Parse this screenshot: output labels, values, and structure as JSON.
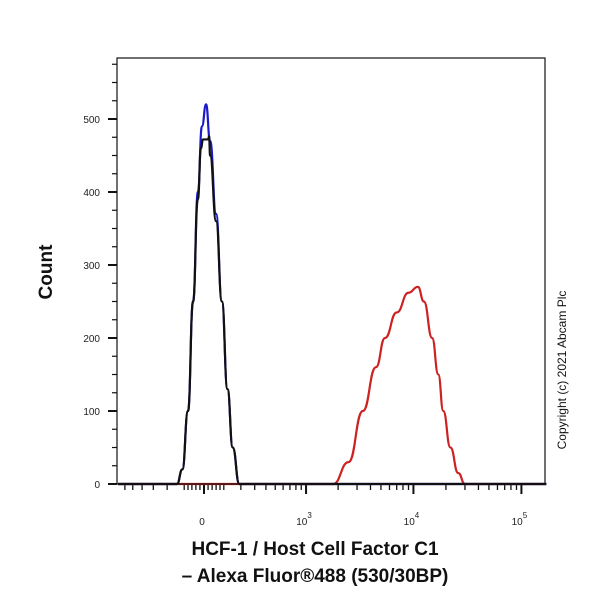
{
  "chart_data": {
    "type": "line",
    "title": "",
    "xlabel_lines": [
      "HCF-1 / Host Cell Factor C1",
      "– Alexa Fluor®488 (530/30BP)"
    ],
    "ylabel": "Count",
    "x_scale": "biexponential",
    "xlim": [
      -700,
      170000
    ],
    "ylim": [
      0,
      584
    ],
    "x_ticks": [
      {
        "value": 0,
        "label": "0"
      },
      {
        "value": 1000,
        "label": "10",
        "exp": "3"
      },
      {
        "value": 10000,
        "label": "10",
        "exp": "4"
      },
      {
        "value": 100000,
        "label": "10",
        "exp": "5"
      }
    ],
    "y_ticks": [
      0,
      100,
      200,
      300,
      400,
      500
    ],
    "grid": false,
    "series": [
      {
        "color": "#cc2222",
        "x": [
          -700,
          1800,
          2500,
          3400,
          4500,
          5450,
          7000,
          9000,
          11000,
          12500,
          14900,
          17000,
          18900,
          22000,
          26000,
          30000,
          170000
        ],
        "y": [
          0,
          0,
          30,
          100,
          160,
          200,
          235,
          262,
          270,
          250,
          200,
          150,
          100,
          50,
          15,
          0,
          0
        ]
      },
      {
        "color": "#1a1acc",
        "x": [
          -700,
          -140,
          -110,
          -80,
          -54,
          -30,
          -10,
          10,
          30,
          60,
          90,
          120,
          150,
          190,
          170000
        ],
        "y": [
          0,
          0,
          20,
          100,
          250,
          400,
          490,
          520,
          470,
          370,
          250,
          130,
          50,
          0,
          0
        ]
      },
      {
        "color": "#111111",
        "x": [
          -700,
          -140,
          -110,
          -80,
          -54,
          -30,
          -15,
          -5,
          0,
          20,
          25,
          30,
          60,
          90,
          120,
          150,
          190,
          170000
        ],
        "y": [
          0,
          0,
          20,
          100,
          250,
          390,
          460,
          472,
          472,
          472,
          476,
          450,
          360,
          250,
          130,
          50,
          0,
          0
        ]
      }
    ]
  },
  "copyright": "Copyright (c) 2021 Abcam Plc"
}
